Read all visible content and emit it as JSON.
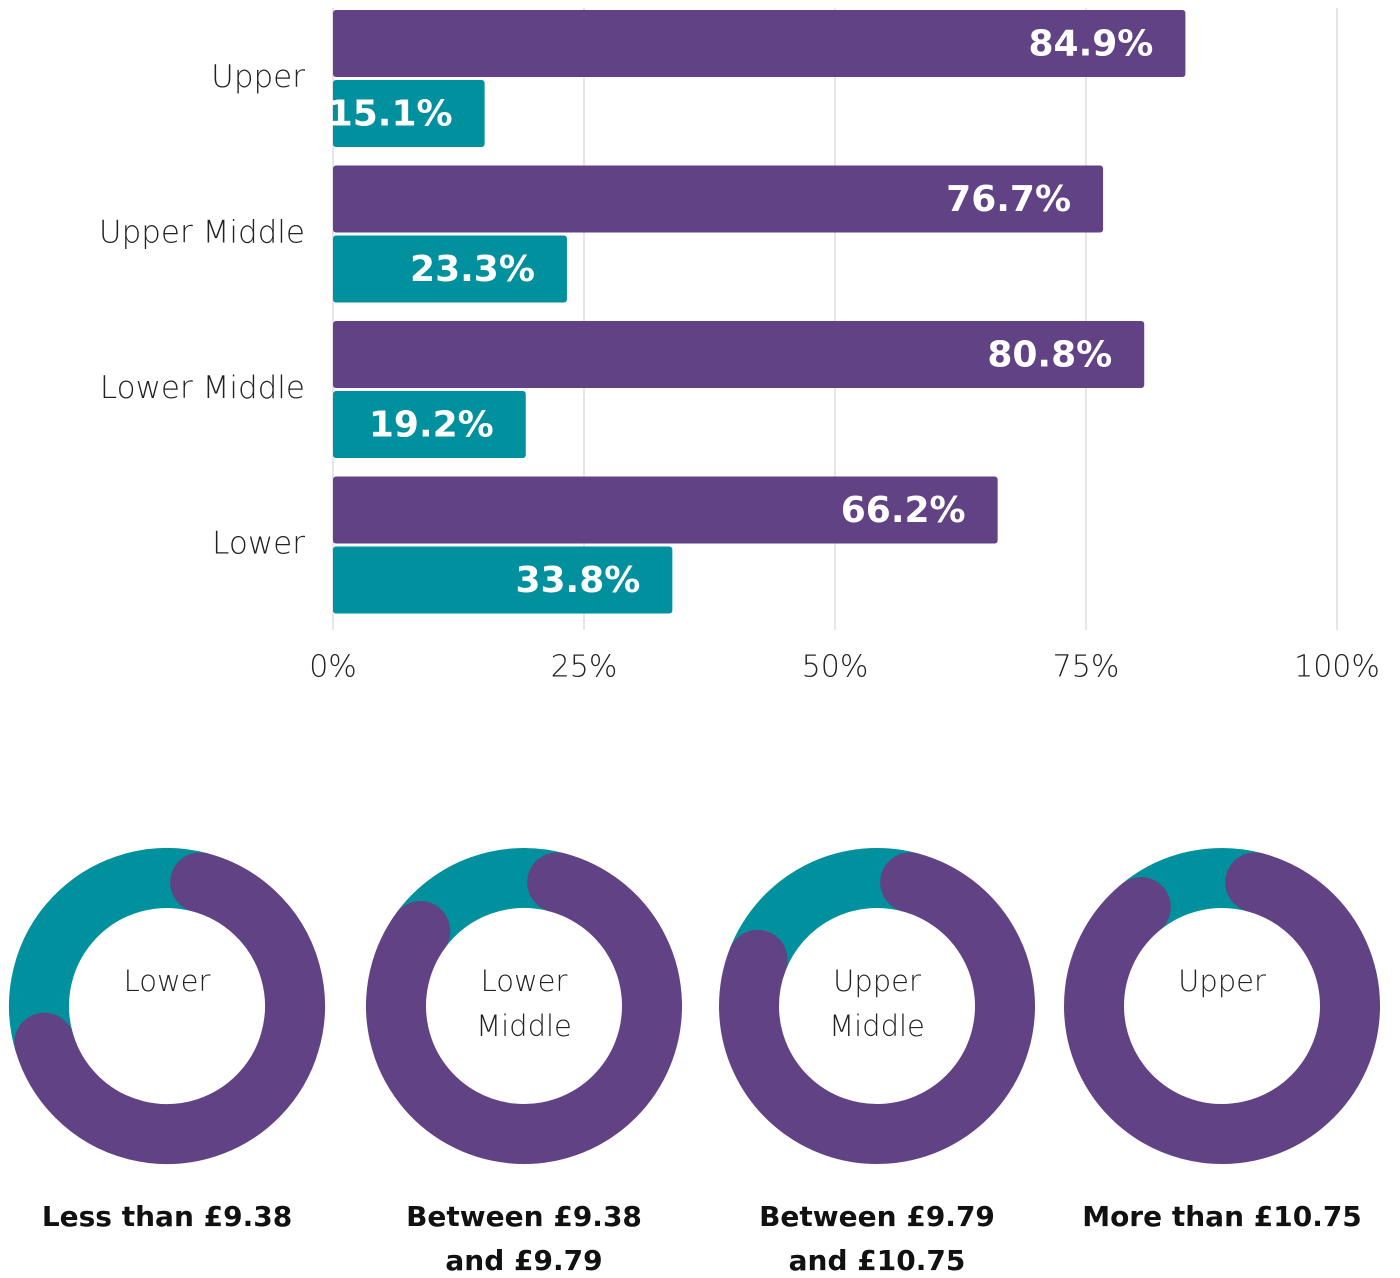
{
  "chart_data": [
    {
      "type": "bar",
      "orientation": "horizontal",
      "categories": [
        "Upper",
        "Upper Middle",
        "Lower Middle",
        "Lower"
      ],
      "series": [
        {
          "color": "#614385",
          "values": [
            84.9,
            76.7,
            80.8,
            66.2
          ],
          "value_labels": [
            "84.9%",
            "76.7%",
            "80.8%",
            "66.2%"
          ]
        },
        {
          "color": "#00909e",
          "values": [
            15.1,
            23.3,
            19.2,
            33.8
          ],
          "value_labels": [
            "15.1%",
            "23.3%",
            "19.2%",
            "33.8%"
          ]
        }
      ],
      "xlim": [
        0,
        100
      ],
      "xticks": [
        {
          "value": 0,
          "label": "0%"
        },
        {
          "value": 25,
          "label": "25%"
        },
        {
          "value": 50,
          "label": "50%"
        },
        {
          "value": 75,
          "label": "75%"
        },
        {
          "value": 100,
          "label": "100%"
        }
      ],
      "grid": true
    },
    {
      "type": "donut",
      "labels": [
        [
          "Lower"
        ],
        [
          "Lower",
          "Middle"
        ],
        [
          "Upper",
          "Middle"
        ],
        [
          "Upper"
        ]
      ],
      "captions": [
        [
          "Less than £9.38"
        ],
        [
          "Between £9.38",
          "and £9.79"
        ],
        [
          "Between £9.79",
          "and £10.75"
        ],
        [
          "More than £10.75"
        ]
      ],
      "series": [
        {
          "color": "#614385",
          "values": [
            66.2,
            80.8,
            76.7,
            84.9
          ]
        },
        {
          "color": "#00909e",
          "values": [
            33.8,
            19.2,
            23.3,
            15.1
          ]
        }
      ]
    }
  ]
}
